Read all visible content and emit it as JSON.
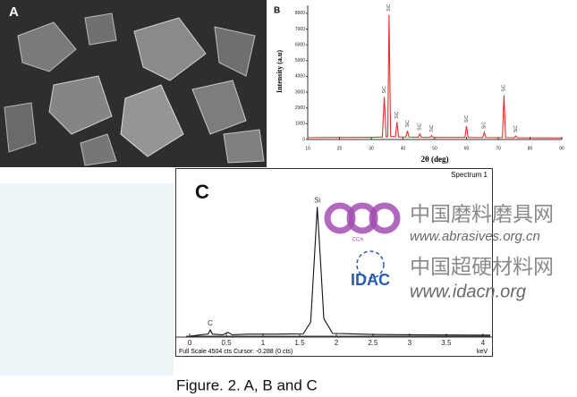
{
  "panel_a": {
    "label": "A"
  },
  "chart_data": [
    {
      "type": "line",
      "panel_label": "B",
      "ylabel": "Intensity (a.u)",
      "xlabel": "2θ (deg)",
      "color": "#e03030",
      "x": [
        10,
        20,
        30,
        33.5,
        34.1,
        34.7,
        35.2,
        35.6,
        36.1,
        37.6,
        38.1,
        38.6,
        40.9,
        41.4,
        41.9,
        44.8,
        45.3,
        45.8,
        48.5,
        49,
        49.5,
        59.5,
        60,
        60.5,
        65.1,
        65.6,
        66.1,
        71.3,
        71.8,
        72.3,
        75,
        75.5,
        76,
        90
      ],
      "values": [
        120,
        130,
        140,
        150,
        2700,
        160,
        180,
        7900,
        200,
        170,
        1100,
        160,
        150,
        550,
        150,
        140,
        350,
        140,
        130,
        250,
        130,
        130,
        850,
        130,
        120,
        450,
        120,
        120,
        2800,
        120,
        110,
        220,
        110,
        100
      ],
      "annotations": [
        {
          "text": "SiC",
          "x": 34.1,
          "y": 2700
        },
        {
          "text": "SiC",
          "x": 35.6,
          "y": 7900
        },
        {
          "text": "SiC",
          "x": 38.1,
          "y": 1100
        },
        {
          "text": "SiC",
          "x": 41.4,
          "y": 550
        },
        {
          "text": "SiC",
          "x": 45.3,
          "y": 350
        },
        {
          "text": "SiC",
          "x": 49,
          "y": 250
        },
        {
          "text": "SiC",
          "x": 60,
          "y": 850
        },
        {
          "text": "SiC",
          "x": 65.6,
          "y": 450
        },
        {
          "text": "SiC",
          "x": 71.8,
          "y": 2800
        },
        {
          "text": "SiC",
          "x": 75.5,
          "y": 220
        }
      ],
      "xlim": [
        10,
        90
      ],
      "xticks": [
        10,
        20,
        30,
        40,
        50,
        60,
        70,
        80,
        90
      ],
      "ylim": [
        0,
        8500
      ],
      "yticks": [
        0,
        1000,
        2000,
        3000,
        4000,
        5000,
        6000,
        7000,
        8000
      ]
    },
    {
      "type": "line",
      "panel_label": "C",
      "spectrum_name": "Spectrum 1",
      "status_text": "Full Scale 4504 cts Cursor: -0.288 (0 cts)",
      "xlabel": "keV",
      "color": "#111111",
      "x": [
        0,
        0.15,
        0.25,
        0.28,
        0.31,
        0.45,
        0.52,
        0.58,
        0.8,
        1.2,
        1.55,
        1.65,
        1.7,
        1.74,
        1.78,
        1.83,
        1.95,
        2.5,
        3,
        4,
        4.1
      ],
      "values": [
        0,
        40,
        60,
        180,
        60,
        40,
        110,
        40,
        60,
        60,
        70,
        400,
        2200,
        3700,
        2300,
        500,
        80,
        50,
        40,
        30,
        30
      ],
      "annotations": [
        {
          "text": "C",
          "x": 0.28,
          "y": 180
        },
        {
          "text": "Si",
          "x": 1.74,
          "y": 3700
        }
      ],
      "xlim": [
        -0.05,
        4.1
      ],
      "xticks": [
        0,
        0.5,
        1,
        1.5,
        2,
        2.5,
        3,
        3.5,
        4
      ],
      "ylim": [
        0,
        4504
      ]
    }
  ],
  "watermarks": {
    "logo_1": "CCA",
    "site_1_name": "中国磨料磨具网",
    "site_1_url": "www.abrasives.org.cn",
    "logo_2": "IDAC",
    "site_2_name": "中国超硬材料网",
    "site_2_url": "www.idacn.org"
  },
  "caption": "Figure. 2. A, B and C"
}
